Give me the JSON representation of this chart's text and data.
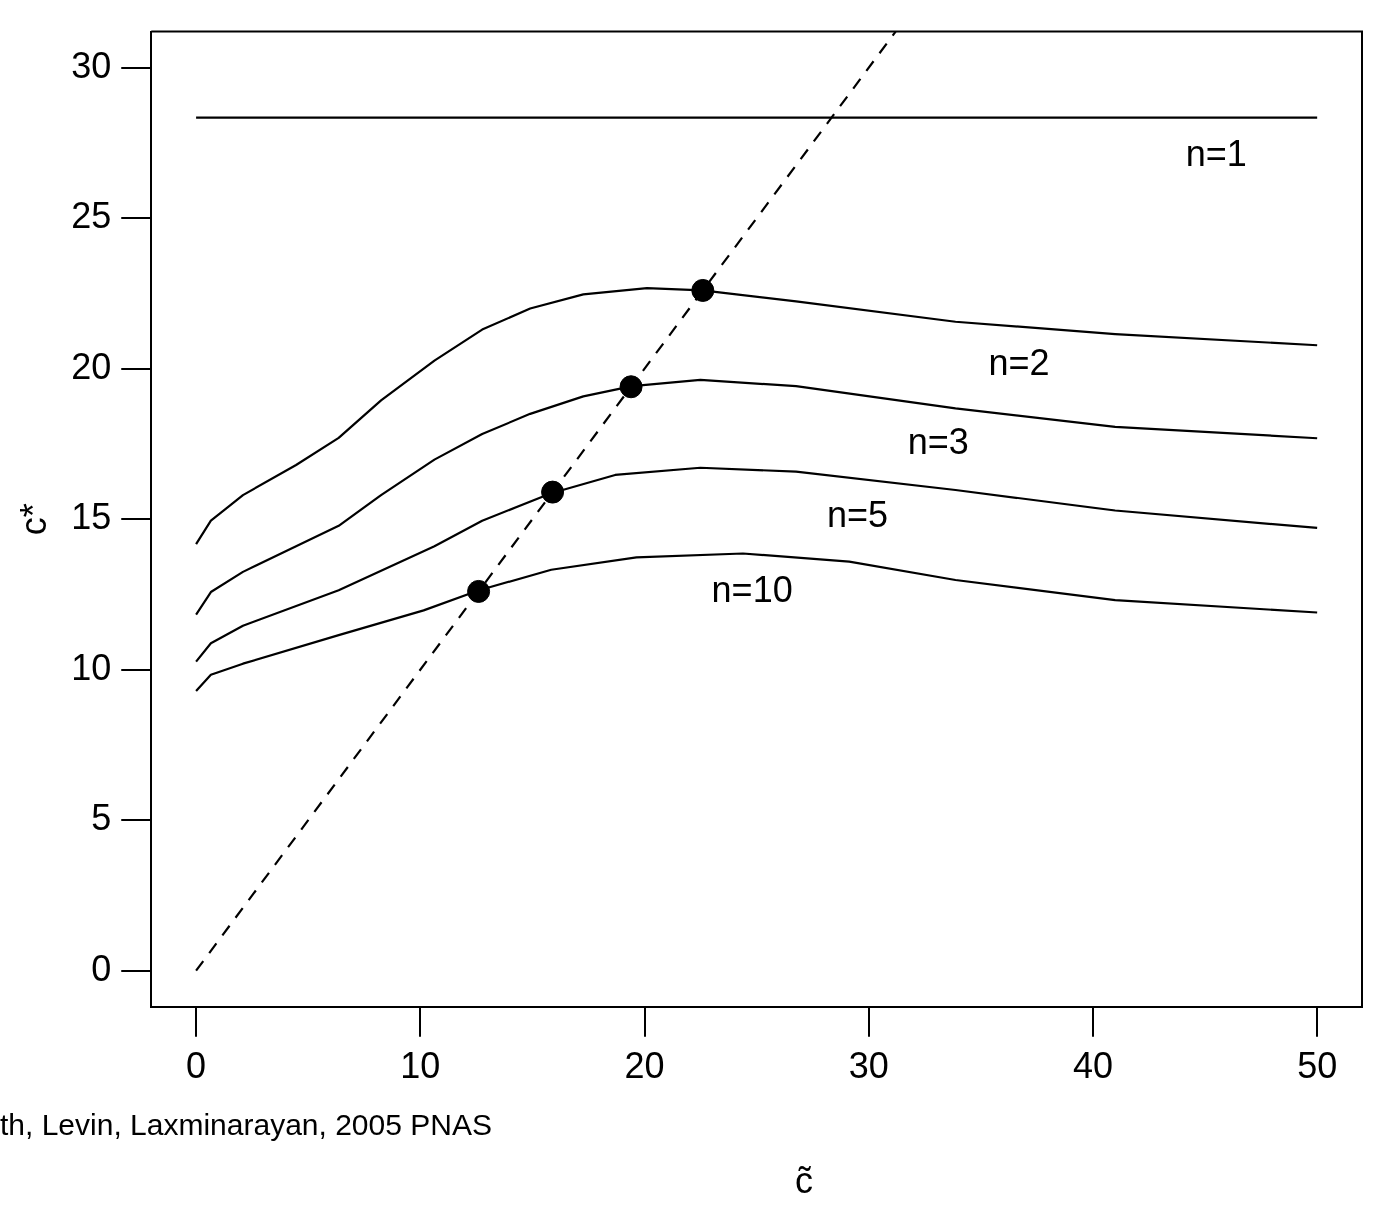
{
  "chart_data": {
    "type": "line",
    "xlabel": "c̃",
    "ylabel": "c*",
    "xlim": [
      -2,
      52
    ],
    "ylim": [
      -1.2,
      31.2
    ],
    "xticks": [
      0,
      10,
      20,
      30,
      40,
      50
    ],
    "yticks": [
      0,
      5,
      10,
      15,
      20,
      25,
      30
    ],
    "grid": false,
    "legend": false,
    "marker": "none",
    "line_style": "solid",
    "series": [
      {
        "name": "n=1",
        "color": "#000000",
        "x": [
          0,
          50
        ],
        "values": [
          28.34,
          28.34
        ]
      },
      {
        "name": "n=2",
        "color": "#000000",
        "x": [
          0,
          0.66,
          2.09,
          4.46,
          6.36,
          8.25,
          10.63,
          12.76,
          14.9,
          17.27,
          20.11,
          22.58,
          26.76,
          33.87,
          40.99,
          50
        ],
        "values": [
          14.17,
          14.95,
          15.8,
          16.8,
          17.7,
          18.95,
          20.27,
          21.3,
          22.0,
          22.47,
          22.68,
          22.6,
          22.24,
          21.56,
          21.15,
          20.78
        ]
      },
      {
        "name": "n=3",
        "color": "#000000",
        "x": [
          0,
          0.66,
          2.09,
          4.46,
          6.36,
          8.25,
          10.63,
          12.76,
          14.9,
          17.27,
          19.45,
          22.49,
          26.76,
          33.87,
          40.99,
          50
        ],
        "values": [
          11.83,
          12.58,
          13.25,
          14.1,
          14.78,
          15.8,
          16.98,
          17.83,
          18.5,
          19.08,
          19.42,
          19.63,
          19.42,
          18.68,
          18.07,
          17.69
        ]
      },
      {
        "name": "n=5",
        "color": "#000000",
        "x": [
          0,
          0.66,
          2.09,
          6.36,
          10.63,
          12.76,
          15.84,
          18.69,
          22.49,
          26.76,
          33.87,
          40.99,
          50
        ],
        "values": [
          10.27,
          10.88,
          11.46,
          12.64,
          14.1,
          14.95,
          15.86,
          16.47,
          16.71,
          16.58,
          15.97,
          15.29,
          14.71
        ]
      },
      {
        "name": "n=10",
        "color": "#000000",
        "x": [
          0,
          0.66,
          2.09,
          6.36,
          10.15,
          12.62,
          15.84,
          19.64,
          24.39,
          29.13,
          33.87,
          40.99,
          50
        ],
        "values": [
          9.29,
          9.83,
          10.2,
          11.15,
          11.97,
          12.64,
          13.32,
          13.73,
          13.86,
          13.59,
          12.98,
          12.31,
          11.9
        ]
      },
      {
        "type": "line",
        "color": "#000000",
        "line_style": "dashed",
        "x": [
          0,
          31.2
        ],
        "values": [
          0,
          31.2
        ]
      },
      {
        "type": "scatter",
        "color": "#000000",
        "marker": "circle",
        "x": [
          12.6,
          15.9,
          19.4,
          22.6
        ],
        "values": [
          12.6,
          15.9,
          19.4,
          22.6
        ]
      }
    ],
    "annotations": [
      "th, Levin, Laxminarayan, 2005 PNAS"
    ]
  }
}
